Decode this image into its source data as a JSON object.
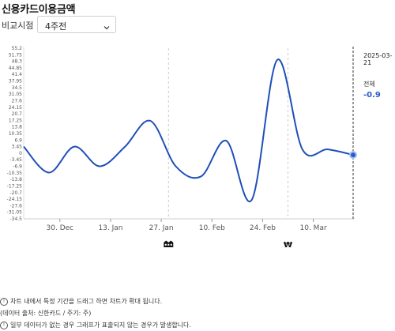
{
  "header": {
    "title": "신용카드이용금액"
  },
  "compare": {
    "label": "비교시점",
    "selected": "4주전"
  },
  "side_panel": {
    "date": "2025-03-21",
    "label": "전체",
    "value": "-0.9"
  },
  "notes": [
    "차트 내에서 특정 기간을 드래그 하면 차트가 확대 됩니다.",
    "(데이터 출처: 신한카드 / 주기: 주)",
    "일부 데이터가 없는 경우 그래프가 표출되지 않는 경우가 발생합니다."
  ],
  "colors": {
    "line": "#1f4fb8",
    "accent": "#2b5cc9"
  },
  "chart_data": {
    "type": "line",
    "x": [
      "2024-12-20",
      "2024-12-27",
      "2025-01-03",
      "2025-01-10",
      "2025-01-17",
      "2025-01-24",
      "2025-01-31",
      "2025-02-07",
      "2025-02-14",
      "2025-02-21",
      "2025-02-28",
      "2025-03-07",
      "2025-03-14",
      "2025-03-21"
    ],
    "series": [
      {
        "values": [
          3.45,
          -10.2,
          3.45,
          -6.9,
          3.45,
          17.0,
          -6.9,
          -12.2,
          6.5,
          -24.5,
          49.0,
          2.0,
          2.0,
          -0.9
        ]
      }
    ],
    "y_ticks": [
      "55.2",
      "51.75",
      "48.3",
      "44.85",
      "41.4",
      "37.95",
      "34.5",
      "31.05",
      "27.6",
      "24.15",
      "20.7",
      "17.25",
      "13.8",
      "10.35",
      "6.9",
      "3.45",
      "0",
      "-3.45",
      "-6.9",
      "-10.35",
      "-13.8",
      "-17.25",
      "-20.7",
      "-24.15",
      "-27.6",
      "-31.05",
      "-34.5"
    ],
    "ylim": [
      -34.5,
      55.2
    ],
    "x_ticks": [
      {
        "date": "2024-12-30",
        "label": "30. Dec"
      },
      {
        "date": "2025-01-13",
        "label": "13. Jan"
      },
      {
        "date": "2025-01-27",
        "label": "27. Jan"
      },
      {
        "date": "2025-02-10",
        "label": "10. Feb"
      },
      {
        "date": "2025-02-24",
        "label": "24. Feb"
      },
      {
        "date": "2025-03-10",
        "label": "10. Mar"
      }
    ],
    "event_markers": [
      {
        "date": "2025-01-29",
        "icon": "building-icon"
      },
      {
        "date": "2025-03-03",
        "icon": "won-icon"
      }
    ],
    "highlight_date": "2025-03-21",
    "grid": false
  }
}
